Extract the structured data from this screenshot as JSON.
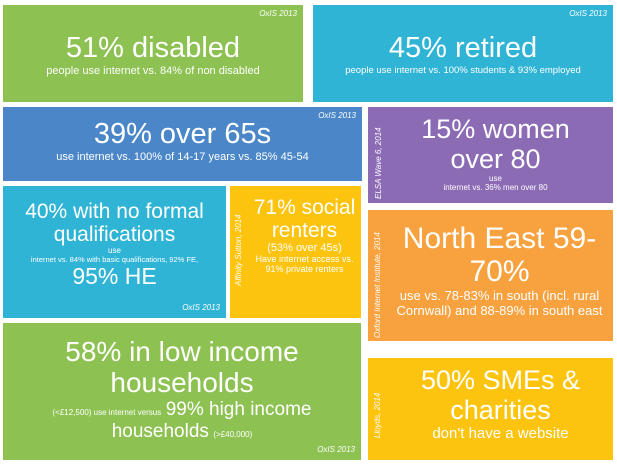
{
  "tiles": [
    {
      "headline": "51% disabled",
      "text": "people use internet vs. 84% of non disabled",
      "source": "OxIS 2013"
    },
    {
      "headline": "45% retired",
      "text": "people use internet vs. 100% students & 93% employed",
      "source": "OxIS 2013"
    },
    {
      "headline": "39% over 65s",
      "text": "use internet vs. 100% of 14-17 years vs. 85% 45-54",
      "source": "OxIS 2013"
    },
    {
      "headline": "15% women over 80",
      "text_1": "use",
      "text_2": "internet vs. 36% men over 80",
      "source": "ELSA Wave 6, 2014"
    },
    {
      "headline": "40% with no formal qualifications",
      "text_1": "use",
      "text_2": "internet vs. 84% with basic qualifications, 92% FE,",
      "headline_2": "95% HE",
      "source": "OxIS 2013"
    },
    {
      "headline": "71% social renters",
      "text_1": "(53% over 45s)",
      "text_2": "Have internet access vs. 91% private renters",
      "source": "Affinity Sutton, 2014"
    },
    {
      "headline": "North East 59-70%",
      "text": "use vs. 78-83% in south (incl. rural Cornwall) and 88-89% in south east",
      "source": "Oxford Internet Institute, 2014"
    },
    {
      "headline": "58% in low income households",
      "text_1": "(<£12,500) use internet versus",
      "headline_2": "99% high income",
      "headline_3": "households",
      "text_2": "(>£40,000)",
      "source": "OxIS 2013"
    },
    {
      "headline": "50% SMEs & charities",
      "text": "don't have a website",
      "source": "Lloyds, 2014"
    }
  ]
}
